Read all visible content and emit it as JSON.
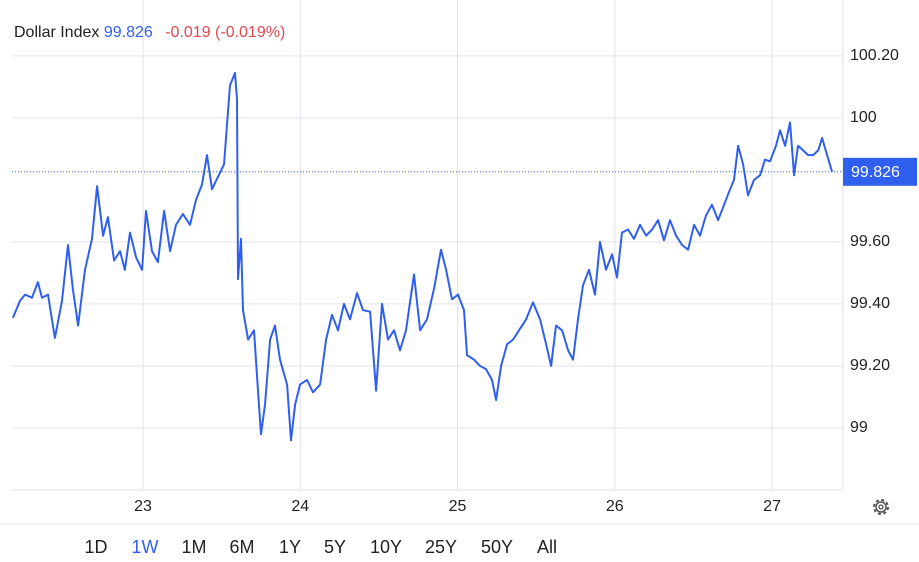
{
  "chart_data": {
    "type": "line",
    "series": [
      {
        "name": "Dollar Index",
        "color": "#2f5fef",
        "values": [
          99.355,
          99.41,
          99.43,
          99.42,
          99.47,
          99.42,
          99.43,
          99.29,
          99.41,
          99.59,
          99.445,
          99.33,
          99.51,
          99.61,
          99.78,
          99.62,
          99.68,
          99.54,
          99.57,
          99.51,
          99.63,
          99.55,
          99.51,
          99.7,
          99.57,
          99.535,
          99.7,
          99.57,
          99.655,
          99.69,
          99.655,
          99.735,
          99.785,
          99.88,
          99.77,
          99.81,
          99.85,
          100.105,
          100.145,
          100.06,
          99.48,
          99.61,
          99.38,
          99.285,
          99.315,
          99.12,
          98.98,
          99.075,
          99.285,
          99.33,
          99.22,
          99.14,
          98.96,
          99.075,
          99.14,
          99.155,
          99.115,
          99.14,
          99.285,
          99.365,
          99.315,
          99.4,
          99.35,
          99.435,
          99.38,
          99.375,
          99.12,
          99.4,
          99.285,
          99.315,
          99.25,
          99.315,
          99.495,
          99.315,
          99.35,
          99.45,
          99.575,
          99.51,
          99.415,
          99.43,
          99.38,
          99.235,
          99.22,
          99.2,
          99.19,
          99.155,
          99.09,
          99.2,
          99.27,
          99.285,
          99.315,
          99.35,
          99.405,
          99.35,
          99.27,
          99.2,
          99.33,
          99.315,
          99.25,
          99.22,
          99.35,
          99.46,
          99.51,
          99.43,
          99.6,
          99.51,
          99.56,
          99.485,
          99.63,
          99.64,
          99.61,
          99.655,
          99.62,
          99.64,
          99.67,
          99.605,
          99.67,
          99.62,
          99.59,
          99.575,
          99.655,
          99.62,
          99.685,
          99.72,
          99.67,
          99.72,
          99.77,
          99.8,
          99.91,
          99.85,
          99.75,
          99.8,
          99.815,
          99.865,
          99.86,
          99.91,
          99.96,
          99.91,
          99.985,
          99.815,
          99.91,
          99.895,
          99.88,
          99.88,
          99.895,
          99.935,
          99.88,
          99.826
        ]
      }
    ],
    "x": [
      22.173,
      22.218,
      22.25,
      22.294,
      22.332,
      22.358,
      22.396,
      22.44,
      22.485,
      22.523,
      22.555,
      22.587,
      22.631,
      22.676,
      22.708,
      22.746,
      22.777,
      22.816,
      22.854,
      22.885,
      22.917,
      22.956,
      22.994,
      23.019,
      23.057,
      23.095,
      23.134,
      23.172,
      23.21,
      23.254,
      23.299,
      23.337,
      23.375,
      23.407,
      23.439,
      23.477,
      23.515,
      23.553,
      23.585,
      23.598,
      23.604,
      23.623,
      23.636,
      23.668,
      23.706,
      23.731,
      23.75,
      23.776,
      23.808,
      23.839,
      23.871,
      23.916,
      23.941,
      23.967,
      23.998,
      24.043,
      24.081,
      24.126,
      24.164,
      24.202,
      24.24,
      24.278,
      24.316,
      24.361,
      24.399,
      24.444,
      24.482,
      24.52,
      24.558,
      24.596,
      24.634,
      24.672,
      24.723,
      24.762,
      24.806,
      24.851,
      24.895,
      24.927,
      24.965,
      25.003,
      25.041,
      25.06,
      25.105,
      25.143,
      25.181,
      25.219,
      25.245,
      25.277,
      25.315,
      25.353,
      25.391,
      25.436,
      25.48,
      25.525,
      25.563,
      25.595,
      25.626,
      25.665,
      25.703,
      25.734,
      25.766,
      25.798,
      25.836,
      25.874,
      25.906,
      25.944,
      25.983,
      26.014,
      26.046,
      26.084,
      26.122,
      26.161,
      26.199,
      26.237,
      26.275,
      26.313,
      26.351,
      26.39,
      26.428,
      26.466,
      26.504,
      26.542,
      26.58,
      26.618,
      26.657,
      26.695,
      26.733,
      26.758,
      26.784,
      26.816,
      26.847,
      26.885,
      26.924,
      26.955,
      26.987,
      27.025,
      27.051,
      27.083,
      27.114,
      27.14,
      27.165,
      27.197,
      27.229,
      27.261,
      27.293,
      27.318,
      27.35,
      27.382
    ],
    "xlim": [
      22.167,
      27.451
    ],
    "xticks": [
      23,
      24,
      25,
      26,
      27
    ],
    "ylim": [
      98.8,
      100.38
    ],
    "yticks": [
      99,
      {
        "value": 99.2,
        "label": "99.20"
      },
      {
        "value": 99.4,
        "label": "99.40"
      },
      {
        "value": 99.6,
        "label": "99.60"
      },
      100,
      {
        "value": 100.2,
        "label": "100.20"
      }
    ],
    "grid": true,
    "last_price": 99.826,
    "change_text": "-0.019 (-0.019%)"
  },
  "range_buttons": [
    "1D",
    "1W",
    "1M",
    "6M",
    "1Y",
    "5Y",
    "10Y",
    "25Y",
    "50Y",
    "All"
  ],
  "active_range": 1
}
